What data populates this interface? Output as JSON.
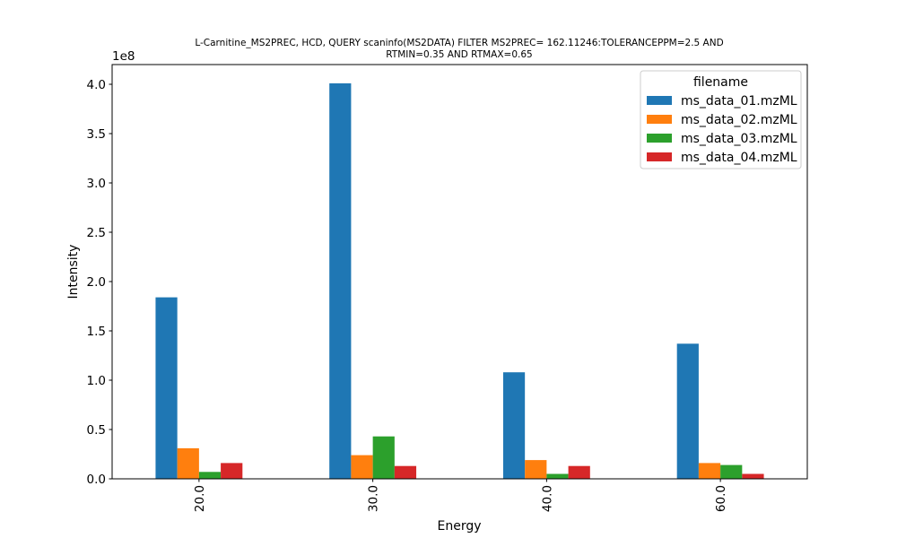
{
  "chart_data": {
    "type": "bar",
    "title_line1": "L-Carnitine_MS2PREC, HCD, QUERY scaninfo(MS2DATA) FILTER MS2PREC= 162.11246:TOLERANCEPPM=2.5 AND",
    "title_line2": "RTMIN=0.35 AND RTMAX=0.65",
    "xlabel": "Energy",
    "ylabel": "Intensity",
    "y_offset_text": "1e8",
    "y_scale": 100000000,
    "ylim": [
      0,
      420000000
    ],
    "yticks": [
      {
        "value": 0,
        "label": "0.0"
      },
      {
        "value": 50000000,
        "label": "0.5"
      },
      {
        "value": 100000000,
        "label": "1.0"
      },
      {
        "value": 150000000,
        "label": "1.5"
      },
      {
        "value": 200000000,
        "label": "2.0"
      },
      {
        "value": 250000000,
        "label": "2.5"
      },
      {
        "value": 300000000,
        "label": "3.0"
      },
      {
        "value": 350000000,
        "label": "3.5"
      },
      {
        "value": 400000000,
        "label": "4.0"
      }
    ],
    "categories": [
      "20.0",
      "30.0",
      "40.0",
      "60.0"
    ],
    "legend_title": "filename",
    "legend_position": "top-right",
    "grid": false,
    "series": [
      {
        "name": "ms_data_01.mzML",
        "color": "#1f77b4",
        "values": [
          184000000,
          401000000,
          108000000,
          137000000
        ]
      },
      {
        "name": "ms_data_02.mzML",
        "color": "#ff7f0e",
        "values": [
          31000000,
          24000000,
          19000000,
          16000000
        ]
      },
      {
        "name": "ms_data_03.mzML",
        "color": "#2ca02c",
        "values": [
          7000000,
          43000000,
          5000000,
          14000000
        ]
      },
      {
        "name": "ms_data_04.mzML",
        "color": "#d62728",
        "values": [
          16000000,
          13000000,
          13000000,
          5000000
        ]
      }
    ]
  }
}
